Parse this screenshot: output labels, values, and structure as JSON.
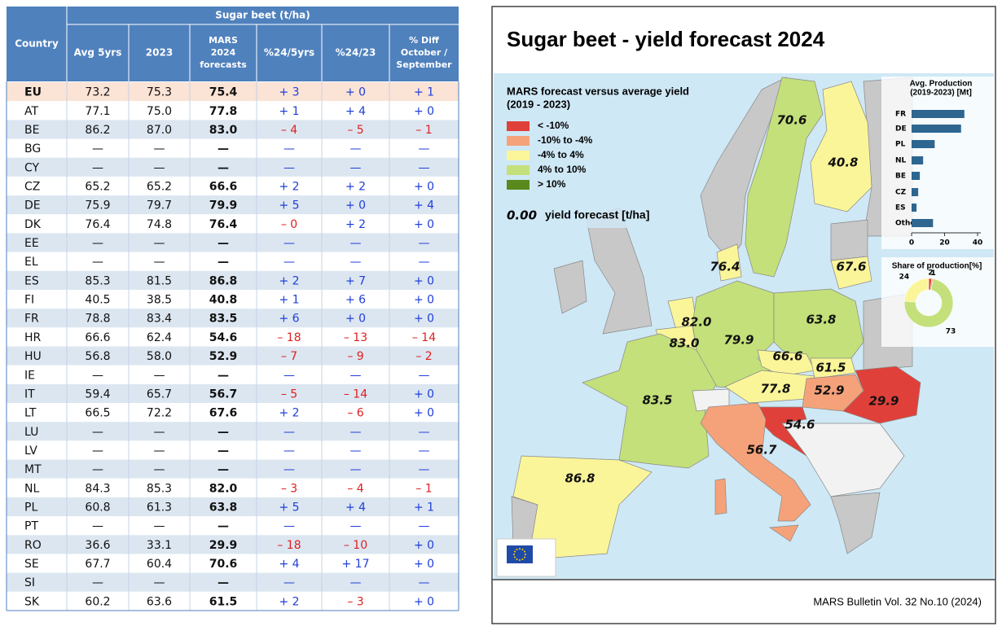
{
  "table": {
    "group_header": "Sugar beet (t/ha)",
    "headers": [
      [
        "Country"
      ],
      [
        "Avg 5yrs"
      ],
      [
        "2023"
      ],
      [
        "MARS",
        "2024",
        "forecasts"
      ],
      [
        "%24/5yrs"
      ],
      [
        "%24/23"
      ],
      [
        "% Diff",
        "October /",
        "September"
      ]
    ],
    "rows": [
      [
        "EU",
        "73.2",
        "75.3",
        "75.4",
        "+ 3",
        "+ 0",
        "+ 1"
      ],
      [
        "AT",
        "77.1",
        "75.0",
        "77.8",
        "+ 1",
        "+ 4",
        "+ 0"
      ],
      [
        "BE",
        "86.2",
        "87.0",
        "83.0",
        "– 4",
        "– 5",
        "– 1"
      ],
      [
        "BG",
        "—",
        "—",
        "—",
        "—",
        "—",
        "—"
      ],
      [
        "CY",
        "—",
        "—",
        "—",
        "—",
        "—",
        "—"
      ],
      [
        "CZ",
        "65.2",
        "65.2",
        "66.6",
        "+ 2",
        "+ 2",
        "+ 0"
      ],
      [
        "DE",
        "75.9",
        "79.7",
        "79.9",
        "+ 5",
        "+ 0",
        "+ 4"
      ],
      [
        "DK",
        "76.4",
        "74.8",
        "76.4",
        "– 0",
        "+ 2",
        "+ 0"
      ],
      [
        "EE",
        "—",
        "—",
        "—",
        "—",
        "—",
        "—"
      ],
      [
        "EL",
        "—",
        "—",
        "—",
        "—",
        "—",
        "—"
      ],
      [
        "ES",
        "85.3",
        "81.5",
        "86.8",
        "+ 2",
        "+ 7",
        "+ 0"
      ],
      [
        "FI",
        "40.5",
        "38.5",
        "40.8",
        "+ 1",
        "+ 6",
        "+ 0"
      ],
      [
        "FR",
        "78.8",
        "83.4",
        "83.5",
        "+ 6",
        "+ 0",
        "+ 0"
      ],
      [
        "HR",
        "66.6",
        "62.4",
        "54.6",
        "– 18",
        "– 13",
        "– 14"
      ],
      [
        "HU",
        "56.8",
        "58.0",
        "52.9",
        "– 7",
        "– 9",
        "– 2"
      ],
      [
        "IE",
        "—",
        "—",
        "—",
        "—",
        "—",
        "—"
      ],
      [
        "IT",
        "59.4",
        "65.7",
        "56.7",
        "– 5",
        "– 14",
        "+ 0"
      ],
      [
        "LT",
        "66.5",
        "72.2",
        "67.6",
        "+ 2",
        "– 6",
        "+ 0"
      ],
      [
        "LU",
        "—",
        "—",
        "—",
        "—",
        "—",
        "—"
      ],
      [
        "LV",
        "—",
        "—",
        "—",
        "—",
        "—",
        "—"
      ],
      [
        "MT",
        "—",
        "—",
        "—",
        "—",
        "—",
        "—"
      ],
      [
        "NL",
        "84.3",
        "85.3",
        "82.0",
        "– 3",
        "– 4",
        "– 1"
      ],
      [
        "PL",
        "60.8",
        "61.3",
        "63.8",
        "+ 5",
        "+ 4",
        "+ 1"
      ],
      [
        "PT",
        "—",
        "—",
        "—",
        "—",
        "—",
        "—"
      ],
      [
        "RO",
        "36.6",
        "33.1",
        "29.9",
        "– 18",
        "– 10",
        "+ 0"
      ],
      [
        "SE",
        "67.7",
        "60.4",
        "70.6",
        "+ 4",
        "+ 17",
        "+ 0"
      ],
      [
        "SI",
        "—",
        "—",
        "—",
        "—",
        "—",
        "—"
      ],
      [
        "SK",
        "60.2",
        "63.6",
        "61.5",
        "+ 2",
        "– 3",
        "+ 0"
      ]
    ]
  },
  "map": {
    "title": "Sugar beet - yield forecast 2024",
    "legend_title": [
      "MARS forecast versus average yield",
      "(2019 - 2023)"
    ],
    "legend": [
      {
        "label": "< -10%",
        "color": "#e0403a"
      },
      {
        "label": "-10% to -4%",
        "color": "#f5a27a"
      },
      {
        "label": "-4% to 4%",
        "color": "#fbf59a"
      },
      {
        "label": "4% to 10%",
        "color": "#c4e07a"
      },
      {
        "label": "> 10%",
        "color": "#5a8a1e"
      }
    ],
    "note_value": "0.00",
    "note_text": "yield forecast [t/ha]",
    "labels": [
      "70.6",
      "40.8",
      "76.4",
      "67.6",
      "82.0",
      "83.0",
      "79.9",
      "63.8",
      "66.6",
      "61.5",
      "77.8",
      "52.9",
      "29.9",
      "54.6",
      "56.7",
      "83.5",
      "86.8"
    ],
    "footer": "MARS Bulletin Vol. 32 No.10 (2024)"
  },
  "chart_data": [
    {
      "type": "bar",
      "title": [
        "Avg. Production",
        "(2019-2023) [Mt]"
      ],
      "categories": [
        "FR",
        "DE",
        "PL",
        "NL",
        "BE",
        "CZ",
        "ES",
        "Other"
      ],
      "values": [
        32,
        30,
        14,
        7,
        5,
        4,
        3,
        13
      ],
      "color": "#2e6690",
      "xlim": [
        0,
        40
      ],
      "xticks": [
        0,
        20,
        40
      ]
    },
    {
      "type": "donut",
      "title": "Share of production[%]",
      "values": [
        2,
        1,
        73,
        24
      ],
      "colors": [
        "#e0403a",
        "#f5a27a",
        "#c4e07a",
        "#fbf59a"
      ]
    }
  ]
}
